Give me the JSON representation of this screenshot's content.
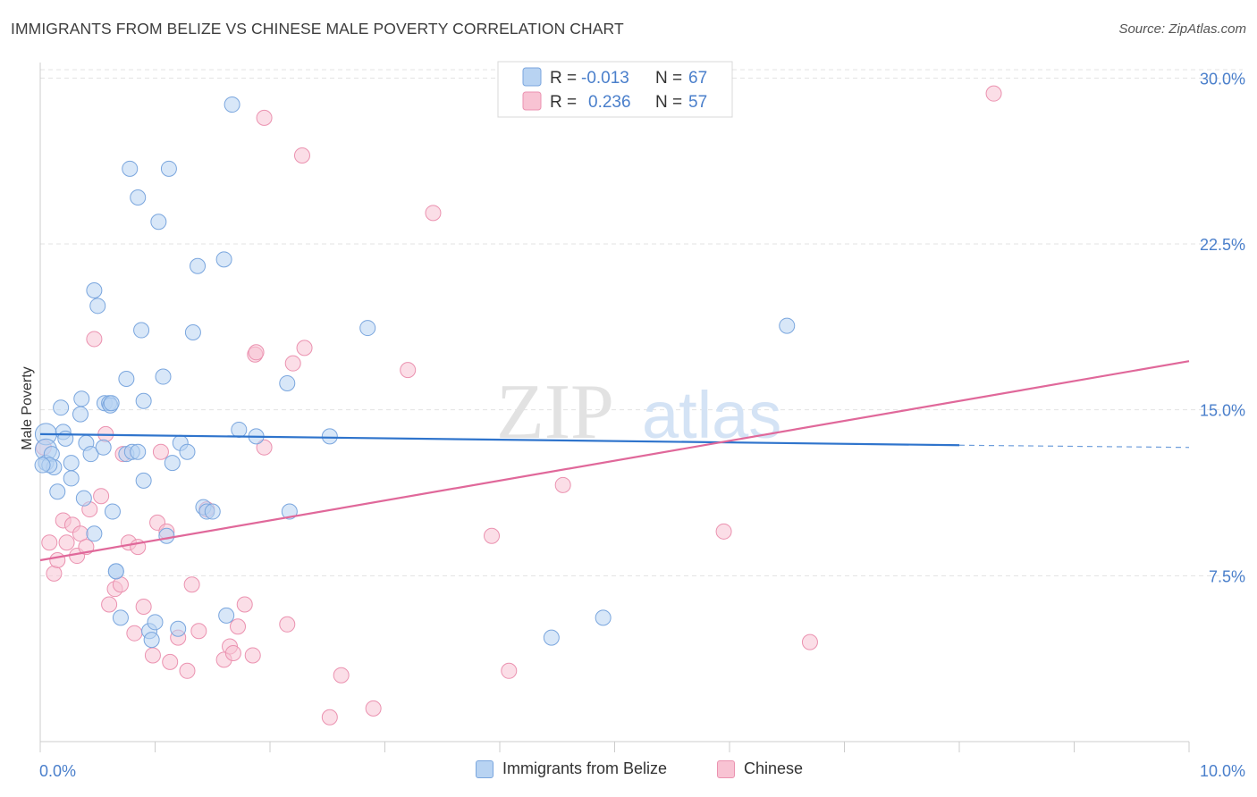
{
  "title": "IMMIGRANTS FROM BELIZE VS CHINESE MALE POVERTY CORRELATION CHART",
  "source": "Source: ZipAtlas.com",
  "watermark": {
    "zip": "ZIP",
    "atlas": "atlas"
  },
  "colors": {
    "blue_fill": "#b8d3f2",
    "blue_stroke": "#7aa6de",
    "blue_line": "#2f74cc",
    "pink_fill": "#f8c3d3",
    "pink_stroke": "#eb92b0",
    "pink_line": "#e0689a",
    "tick_label": "#4a7fcb",
    "grid": "#e3e3e3",
    "axis": "#cccccc"
  },
  "legend_top": {
    "rows": [
      {
        "r_label": "R =",
        "r_value": "-0.013",
        "n_label": "N =",
        "n_value": "67"
      },
      {
        "r_label": "R =",
        "r_value": "0.236",
        "n_label": "N =",
        "n_value": "57"
      }
    ]
  },
  "legend_bottom": [
    "Immigrants from Belize",
    "Chinese"
  ],
  "chart_data": {
    "type": "scatter",
    "title": "IMMIGRANTS FROM BELIZE VS CHINESE MALE POVERTY CORRELATION CHART",
    "xlabel": "",
    "ylabel": "Male Poverty",
    "xlim": [
      0,
      10
    ],
    "ylim": [
      0,
      30.7
    ],
    "x_tick_labels": [
      "0.0%",
      "10.0%"
    ],
    "y_ticks": [
      7.5,
      15.0,
      22.5,
      30.0
    ],
    "y_tick_labels": [
      "7.5%",
      "15.0%",
      "22.5%",
      "30.0%"
    ],
    "grid": true,
    "legend_placement": "top-center",
    "series": [
      {
        "name": "Immigrants from Belize",
        "r": -0.013,
        "n": 67,
        "trend": {
          "x0": 0,
          "y0": 13.9,
          "x1": 8,
          "y1": 13.4,
          "dashed_to": 10,
          "dashed_y": 13.3
        },
        "points": [
          [
            0.05,
            13.9
          ],
          [
            0.05,
            13.2
          ],
          [
            0.05,
            12.6
          ],
          [
            0.1,
            13.0
          ],
          [
            0.12,
            12.4
          ],
          [
            0.15,
            11.3
          ],
          [
            0.2,
            14.0
          ],
          [
            0.22,
            13.7
          ],
          [
            0.18,
            15.1
          ],
          [
            0.27,
            12.6
          ],
          [
            0.27,
            11.9
          ],
          [
            0.35,
            14.8
          ],
          [
            0.36,
            15.5
          ],
          [
            0.38,
            11.0
          ],
          [
            0.4,
            13.5
          ],
          [
            0.44,
            13.0
          ],
          [
            0.47,
            9.4
          ],
          [
            0.47,
            20.4
          ],
          [
            0.5,
            19.7
          ],
          [
            0.55,
            13.3
          ],
          [
            0.56,
            15.3
          ],
          [
            0.6,
            15.3
          ],
          [
            0.61,
            15.2
          ],
          [
            0.63,
            10.4
          ],
          [
            0.66,
            7.7
          ],
          [
            0.7,
            5.6
          ],
          [
            0.75,
            13.0
          ],
          [
            0.75,
            16.4
          ],
          [
            0.78,
            25.9
          ],
          [
            0.8,
            13.1
          ],
          [
            0.85,
            24.6
          ],
          [
            0.85,
            13.1
          ],
          [
            0.88,
            18.6
          ],
          [
            0.9,
            15.4
          ],
          [
            0.9,
            11.8
          ],
          [
            0.95,
            5.0
          ],
          [
            0.97,
            4.6
          ],
          [
            1.0,
            5.4
          ],
          [
            1.03,
            23.5
          ],
          [
            1.07,
            16.5
          ],
          [
            1.1,
            9.3
          ],
          [
            1.12,
            25.9
          ],
          [
            1.15,
            12.6
          ],
          [
            1.2,
            5.1
          ],
          [
            1.22,
            13.5
          ],
          [
            1.28,
            13.1
          ],
          [
            1.33,
            18.5
          ],
          [
            1.37,
            21.5
          ],
          [
            1.42,
            10.6
          ],
          [
            1.45,
            10.4
          ],
          [
            1.5,
            10.4
          ],
          [
            1.6,
            21.8
          ],
          [
            1.62,
            5.7
          ],
          [
            1.67,
            28.8
          ],
          [
            1.73,
            14.1
          ],
          [
            1.88,
            13.8
          ],
          [
            2.15,
            16.2
          ],
          [
            2.17,
            10.4
          ],
          [
            2.52,
            13.8
          ],
          [
            2.85,
            18.7
          ],
          [
            0.66,
            7.7
          ],
          [
            0.62,
            15.3
          ],
          [
            0.08,
            12.5
          ],
          [
            0.02,
            12.5
          ],
          [
            4.45,
            4.7
          ],
          [
            4.9,
            5.6
          ],
          [
            6.5,
            18.8
          ]
        ]
      },
      {
        "name": "Chinese",
        "r": 0.236,
        "n": 57,
        "trend": {
          "x0": 0,
          "y0": 8.2,
          "x1": 10,
          "y1": 17.2
        },
        "points": [
          [
            0.03,
            13.3
          ],
          [
            0.08,
            9.0
          ],
          [
            0.12,
            7.6
          ],
          [
            0.15,
            8.2
          ],
          [
            0.2,
            10.0
          ],
          [
            0.23,
            9.0
          ],
          [
            0.28,
            9.8
          ],
          [
            0.32,
            8.4
          ],
          [
            0.35,
            9.4
          ],
          [
            0.4,
            8.8
          ],
          [
            0.43,
            10.5
          ],
          [
            0.47,
            18.2
          ],
          [
            0.53,
            11.1
          ],
          [
            0.57,
            13.9
          ],
          [
            0.6,
            6.2
          ],
          [
            0.65,
            6.9
          ],
          [
            0.7,
            7.1
          ],
          [
            0.72,
            13.0
          ],
          [
            0.77,
            9.0
          ],
          [
            0.82,
            4.9
          ],
          [
            0.85,
            8.8
          ],
          [
            0.9,
            6.1
          ],
          [
            0.98,
            3.9
          ],
          [
            1.02,
            9.9
          ],
          [
            1.05,
            13.1
          ],
          [
            1.1,
            9.5
          ],
          [
            1.13,
            3.6
          ],
          [
            1.2,
            4.7
          ],
          [
            1.28,
            3.2
          ],
          [
            1.32,
            7.1
          ],
          [
            1.38,
            5.0
          ],
          [
            1.45,
            10.5
          ],
          [
            1.6,
            3.7
          ],
          [
            1.65,
            4.3
          ],
          [
            1.68,
            4.0
          ],
          [
            1.72,
            5.2
          ],
          [
            1.78,
            6.2
          ],
          [
            1.85,
            3.9
          ],
          [
            1.87,
            17.5
          ],
          [
            1.95,
            13.3
          ],
          [
            1.95,
            28.2
          ],
          [
            2.15,
            5.3
          ],
          [
            2.2,
            17.1
          ],
          [
            2.28,
            26.5
          ],
          [
            2.3,
            17.8
          ],
          [
            2.52,
            1.1
          ],
          [
            2.62,
            3.0
          ],
          [
            2.9,
            1.5
          ],
          [
            3.2,
            16.8
          ],
          [
            3.42,
            23.9
          ],
          [
            3.93,
            9.3
          ],
          [
            4.08,
            3.2
          ],
          [
            4.55,
            11.6
          ],
          [
            5.95,
            9.5
          ],
          [
            6.7,
            4.5
          ],
          [
            8.3,
            29.3
          ],
          [
            1.88,
            17.6
          ]
        ]
      }
    ]
  }
}
